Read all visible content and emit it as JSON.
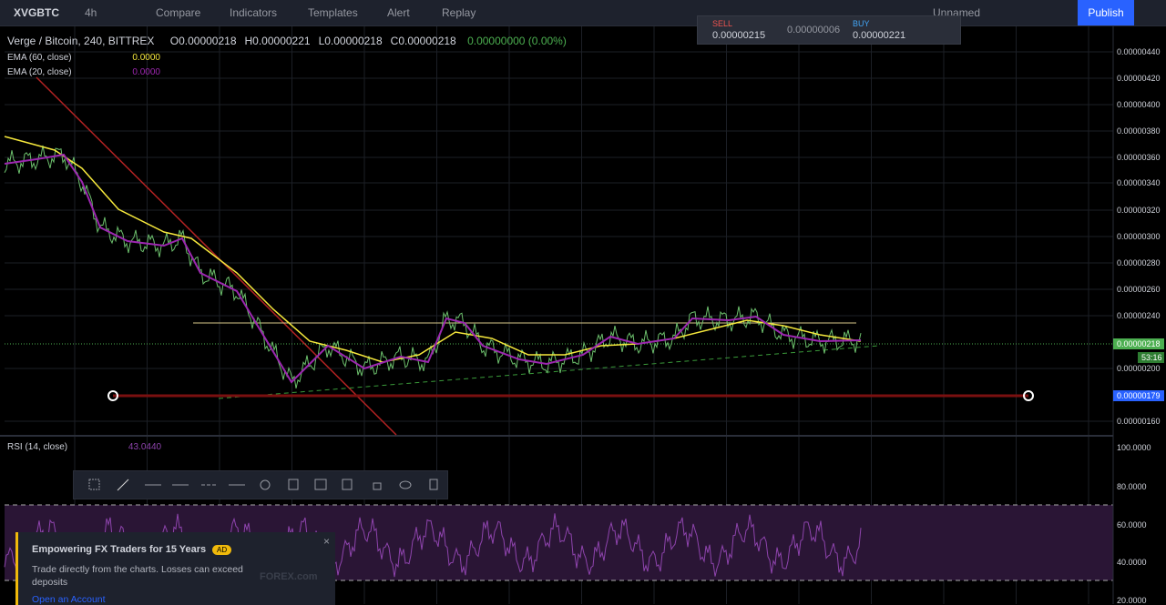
{
  "toolbar": {
    "symbol": "XVGBTC",
    "interval": "4h",
    "buttons": [
      "Compare",
      "Indicators",
      "Templates",
      "Alert",
      "Replay"
    ],
    "layout_name": "Unnamed",
    "publish": "Publish"
  },
  "trade": {
    "sell_label": "SELL",
    "sell_price": "0.00000215",
    "spread": "0.00000006",
    "buy_label": "BUY",
    "buy_price": "0.00000221"
  },
  "legend": {
    "title": "Verge / Bitcoin, 240, BITTREX",
    "ohlc": [
      "O0.00000218",
      "H0.00000221",
      "L0.00000218",
      "C0.00000218"
    ],
    "change": "0.00000000 (0.00%)"
  },
  "indicators": [
    {
      "name": "EMA (60, close)",
      "value": "0.0000"
    },
    {
      "name": "EMA (20, close)",
      "value": "0.0000"
    }
  ],
  "price_axis": {
    "ticks": [
      "0.00000440",
      "0.00000420",
      "0.00000400",
      "0.00000380",
      "0.00000360",
      "0.00000340",
      "0.00000320",
      "0.00000300",
      "0.00000280",
      "0.00000260",
      "0.00000240",
      "0.00000200",
      "0.00000160"
    ],
    "current": "0.00000218",
    "countdown": "53:16",
    "line_price": "0.00000179"
  },
  "rsi": {
    "name": "RSI (14, close)",
    "value": "43.0440",
    "ticks": [
      "100.0000",
      "80.0000",
      "60.0000",
      "40.0000",
      "20.0000"
    ]
  },
  "ad": {
    "title": "Empowering FX Traders for 15 Years",
    "badge": "AD",
    "body": "Trade directly from the charts. Losses can exceed deposits",
    "link": "Open an Account",
    "brand": "FOREX.com"
  }
}
